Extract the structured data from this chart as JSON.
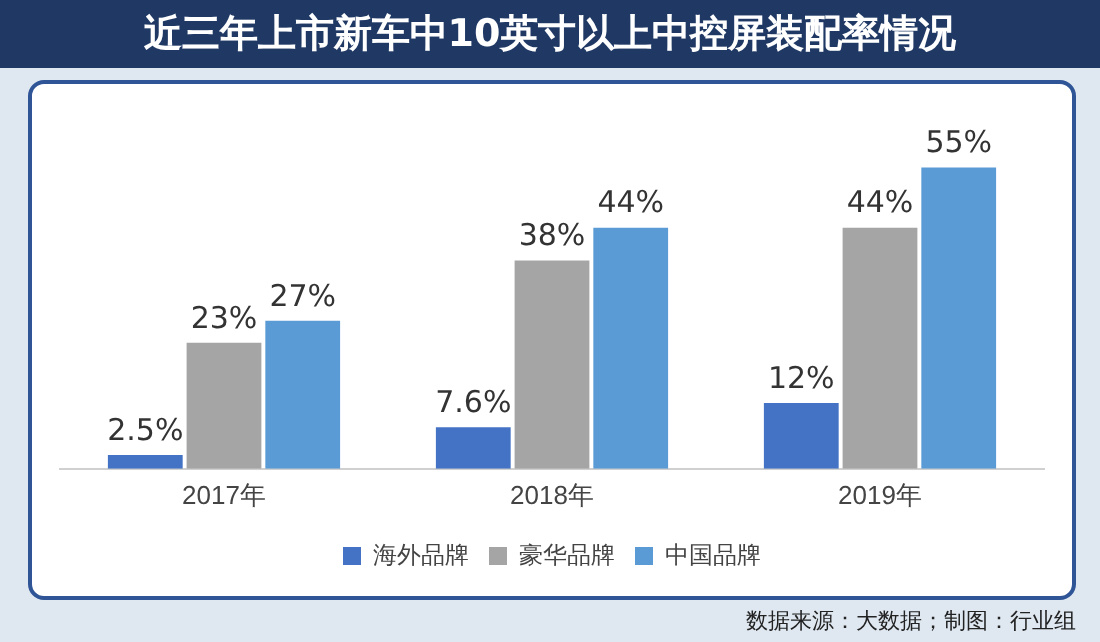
{
  "chart_data": {
    "type": "bar",
    "title": "近三年上市新车中10英寸以上中控屏装配率情况",
    "categories": [
      "2017年",
      "2018年",
      "2019年"
    ],
    "series": [
      {
        "name": "海外品牌",
        "color": "#4472c4",
        "values": [
          2.5,
          7.6,
          12
        ],
        "value_labels": [
          "2.5%",
          "7.6%",
          "12%"
        ]
      },
      {
        "name": "豪华品牌",
        "color": "#a5a5a5",
        "values": [
          23,
          38,
          44
        ],
        "value_labels": [
          "23%",
          "38%",
          "44%"
        ]
      },
      {
        "name": "中国品牌",
        "color": "#5b9bd5",
        "values": [
          27,
          44,
          55
        ],
        "value_labels": [
          "27%",
          "44%",
          "55%"
        ]
      }
    ],
    "tick_labels": "x",
    "grid": false,
    "legend": "bottom",
    "annotations": [
      "数据来源：大数据；制图：行业组"
    ]
  }
}
